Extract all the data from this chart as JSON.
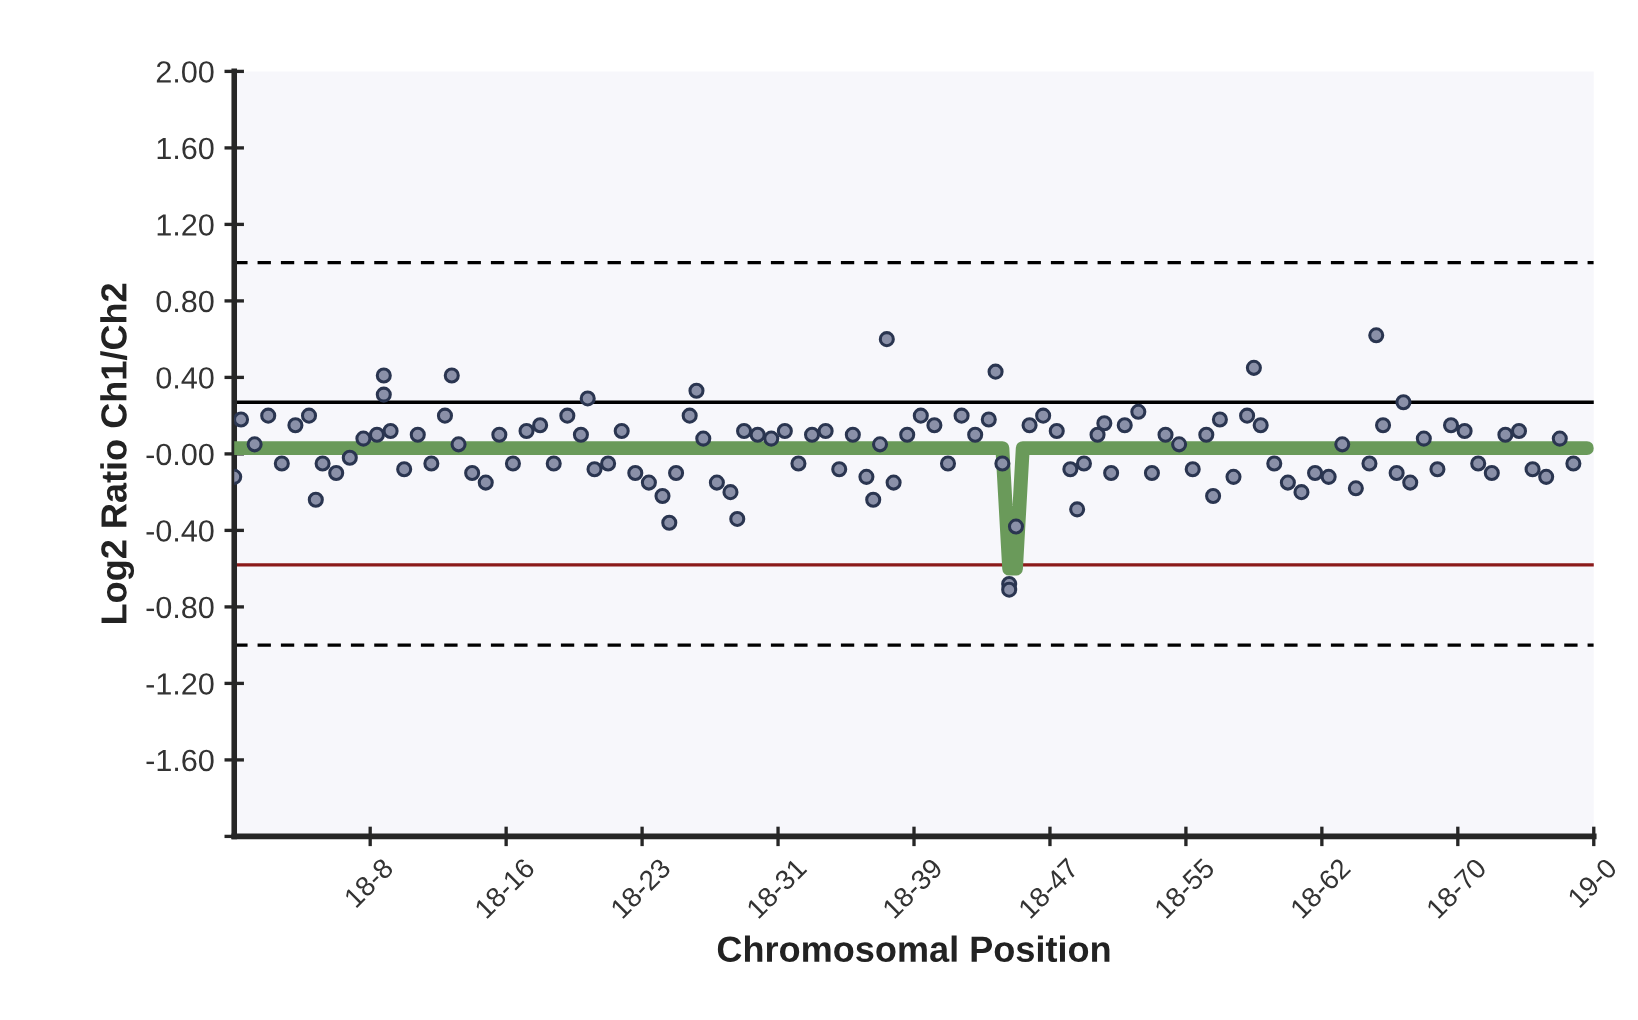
{
  "chart_data": {
    "type": "scatter",
    "xlabel": "Chromosomal Position",
    "ylabel": "Log2 Ratio Ch1/Ch2",
    "categories": [
      null,
      null,
      null,
      null,
      null,
      null,
      null,
      null,
      null,
      null,
      null,
      null,
      null,
      null,
      null,
      null,
      null,
      null,
      null,
      null,
      "18-8",
      null,
      null,
      null,
      null,
      null,
      null,
      null,
      null,
      null,
      null,
      null,
      null,
      null,
      null,
      null,
      null,
      null,
      null,
      null,
      "18-16",
      null,
      null,
      null,
      null,
      null,
      null,
      null,
      null,
      null,
      null,
      null,
      null,
      null,
      null,
      null,
      null,
      null,
      null,
      null,
      "18-23",
      null,
      null,
      null,
      null,
      null,
      null,
      null,
      null,
      null,
      null,
      null,
      null,
      null,
      null,
      null,
      null,
      null,
      null,
      null,
      "18-31",
      null,
      null,
      null,
      null,
      null,
      null,
      null,
      null,
      null,
      null,
      null,
      null,
      null,
      null,
      null,
      null,
      null,
      null,
      null,
      "18-39",
      null,
      null,
      null,
      null,
      null,
      null,
      null,
      null,
      null,
      null,
      null,
      null,
      null,
      null,
      null,
      null,
      null,
      null,
      null,
      "18-47",
      null,
      null,
      null,
      null,
      null,
      null,
      null,
      null,
      null,
      null,
      null,
      null,
      null,
      null,
      null,
      null,
      null,
      null,
      null,
      "18-55",
      null,
      null,
      null,
      null,
      null,
      null,
      null,
      null,
      null,
      null,
      null,
      null,
      null,
      null,
      null,
      null,
      null,
      null,
      null,
      "18-62",
      null,
      null,
      null,
      null,
      null,
      null,
      null,
      null,
      null,
      null,
      null,
      null,
      null,
      null,
      null,
      null,
      null,
      null,
      null,
      "18-70",
      null,
      null,
      null,
      null,
      null,
      null,
      null,
      null,
      null,
      null,
      null,
      null,
      null,
      null,
      null,
      null,
      null,
      null,
      null,
      "19-0"
    ],
    "ylim": [
      -2,
      2
    ],
    "yticks": [
      {
        "value": 2,
        "label": "2.00"
      },
      {
        "value": 1.6,
        "label": "1.60"
      },
      {
        "value": 1.2,
        "label": "1.20"
      },
      {
        "value": 0.8,
        "label": "0.80"
      },
      {
        "value": 0.4,
        "label": "0.40"
      },
      {
        "value": 0,
        "label": "-0.00"
      },
      {
        "value": -0.4,
        "label": "-0.40"
      },
      {
        "value": -0.8,
        "label": "-0.80"
      },
      {
        "value": -1.2,
        "label": "-1.20"
      },
      {
        "value": -1.6,
        "label": "-1.60"
      },
      {
        "value": -2,
        "label": null
      }
    ],
    "grid": false,
    "marker": "circle",
    "ref_lines": [
      {
        "axis": "y",
        "value": 1.0,
        "color": "#000000",
        "line_style": "dashed"
      },
      {
        "axis": "y",
        "value": -1.0,
        "color": "#000000",
        "line_style": "dashed"
      },
      {
        "axis": "y",
        "value": 0.27,
        "color": "#000000",
        "line_style": "solid"
      },
      {
        "axis": "y",
        "value": -0.58,
        "color": "#8b1a1a",
        "line_style": "solid"
      }
    ],
    "series": [
      {
        "color": "#2a3550",
        "values": [
          -0.12,
          0.18,
          null,
          0.05,
          null,
          0.2,
          null,
          -0.05,
          null,
          0.15,
          null,
          0.2,
          -0.24,
          -0.05,
          null,
          -0.1,
          null,
          -0.02,
          null,
          0.08,
          null,
          0.1,
          0.41,
          0.12,
          null,
          -0.08,
          null,
          0.1,
          null,
          -0.05,
          null,
          0.2,
          0.41,
          0.05,
          null,
          -0.1,
          null,
          -0.15,
          null,
          0.1,
          null,
          -0.05,
          null,
          0.12,
          null,
          0.15,
          null,
          -0.05,
          null,
          0.2,
          null,
          0.1,
          0.29,
          -0.08,
          null,
          -0.05,
          null,
          0.12,
          null,
          -0.1,
          null,
          -0.15,
          null,
          -0.22,
          -0.36,
          -0.1,
          null,
          0.2,
          0.33,
          0.08,
          null,
          -0.15,
          null,
          -0.2,
          -0.34,
          0.12,
          null,
          0.1,
          null,
          0.08,
          null,
          0.12,
          null,
          -0.05,
          null,
          0.1,
          null,
          0.12,
          null,
          -0.08,
          null,
          0.1,
          null,
          -0.12,
          -0.24,
          0.05,
          0.6,
          -0.15,
          null,
          0.1,
          null,
          0.2,
          null,
          0.15,
          null,
          -0.05,
          null,
          0.2,
          null,
          0.1,
          null,
          0.18,
          0.43,
          -0.05,
          -0.68,
          -0.38,
          null,
          0.15,
          null,
          0.2,
          null,
          0.12,
          null,
          -0.08,
          -0.29,
          -0.05,
          null,
          0.1,
          0.16,
          -0.1,
          null,
          0.15,
          null,
          0.22,
          null,
          -0.1,
          null,
          0.1,
          null,
          0.05,
          null,
          -0.08,
          null,
          0.1,
          -0.22,
          0.18,
          null,
          -0.12,
          null,
          0.2,
          0.45,
          0.15,
          null,
          -0.05,
          null,
          -0.15,
          null,
          -0.2,
          null,
          -0.1,
          null,
          -0.12,
          null,
          0.05,
          null,
          -0.18,
          null,
          -0.05,
          0.62,
          0.15,
          null,
          -0.1,
          0.27,
          -0.15,
          null,
          0.08,
          null,
          -0.08,
          null,
          0.15,
          null,
          0.12,
          null,
          -0.05,
          null,
          -0.1,
          null,
          0.1,
          null,
          0.12,
          null,
          -0.08,
          null,
          -0.12,
          null,
          0.08,
          null,
          -0.05,
          null,
          null,
          null
        ]
      },
      {
        "color": "#2a3550",
        "values": [
          null,
          null,
          null,
          null,
          null,
          null,
          null,
          null,
          null,
          null,
          null,
          null,
          null,
          null,
          null,
          null,
          null,
          null,
          null,
          null,
          null,
          null,
          0.31,
          null,
          null,
          null,
          null,
          null,
          null,
          null,
          null,
          null,
          null,
          null,
          null,
          null,
          null,
          null,
          null,
          null,
          null,
          null,
          null,
          null,
          null,
          null,
          null,
          null,
          null,
          null,
          null,
          null,
          null,
          null,
          null,
          null,
          null,
          null,
          null,
          null,
          null,
          null,
          null,
          null,
          null,
          null,
          null,
          null,
          null,
          null,
          null,
          null,
          null,
          null,
          null,
          null,
          null,
          null,
          null,
          null,
          null,
          null,
          null,
          null,
          null,
          null,
          null,
          null,
          null,
          null,
          null,
          null,
          null,
          null,
          null,
          null,
          null,
          null,
          null,
          null,
          null,
          null,
          null,
          null,
          null,
          null,
          null,
          null,
          null,
          null,
          null,
          null,
          null,
          null,
          -0.71,
          null,
          null,
          null,
          null,
          null,
          null,
          null,
          null,
          null,
          null,
          null,
          null,
          null,
          null,
          null,
          null,
          null,
          null,
          null,
          null,
          null,
          null,
          null,
          null,
          null,
          null,
          null,
          null,
          null,
          null,
          null,
          null,
          null,
          null,
          null,
          null,
          null,
          null,
          null,
          null,
          null,
          null,
          null,
          null,
          null,
          null,
          null,
          null,
          null,
          null,
          null,
          null,
          null,
          null,
          null,
          null,
          null,
          null,
          null,
          null,
          null,
          null,
          null,
          null,
          null,
          null,
          null,
          null,
          null,
          null,
          null,
          null,
          null,
          null,
          null,
          null,
          null,
          null,
          null,
          null,
          null,
          null,
          null,
          null,
          null,
          null
        ]
      },
      {
        "type": "line",
        "marker": "none",
        "color": "#6a9a5a",
        "values": [
          0.03,
          0.03,
          0.03,
          0.03,
          0.03,
          0.03,
          0.03,
          0.03,
          0.03,
          0.03,
          0.03,
          0.03,
          0.03,
          0.03,
          0.03,
          0.03,
          0.03,
          0.03,
          0.03,
          0.03,
          0.03,
          0.03,
          0.03,
          0.03,
          0.03,
          0.03,
          0.03,
          0.03,
          0.03,
          0.03,
          0.03,
          0.03,
          0.03,
          0.03,
          0.03,
          0.03,
          0.03,
          0.03,
          0.03,
          0.03,
          0.03,
          0.03,
          0.03,
          0.03,
          0.03,
          0.03,
          0.03,
          0.03,
          0.03,
          0.03,
          0.03,
          0.03,
          0.03,
          0.03,
          0.03,
          0.03,
          0.03,
          0.03,
          0.03,
          0.03,
          0.03,
          0.03,
          0.03,
          0.03,
          0.03,
          0.03,
          0.03,
          0.03,
          0.03,
          0.03,
          0.03,
          0.03,
          0.03,
          0.03,
          0.03,
          0.03,
          0.03,
          0.03,
          0.03,
          0.03,
          0.03,
          0.03,
          0.03,
          0.03,
          0.03,
          0.03,
          0.03,
          0.03,
          0.03,
          0.03,
          0.03,
          0.03,
          0.03,
          0.03,
          0.03,
          0.03,
          0.03,
          0.03,
          0.03,
          0.03,
          0.03,
          0.03,
          0.03,
          0.03,
          0.03,
          0.03,
          0.03,
          0.03,
          0.03,
          0.03,
          0.03,
          0.03,
          0.03,
          0.03,
          -0.6,
          -0.6,
          0.03,
          0.03,
          0.03,
          0.03,
          0.03,
          0.03,
          0.03,
          0.03,
          0.03,
          0.03,
          0.03,
          0.03,
          0.03,
          0.03,
          0.03,
          0.03,
          0.03,
          0.03,
          0.03,
          0.03,
          0.03,
          0.03,
          0.03,
          0.03,
          0.03,
          0.03,
          0.03,
          0.03,
          0.03,
          0.03,
          0.03,
          0.03,
          0.03,
          0.03,
          0.03,
          0.03,
          0.03,
          0.03,
          0.03,
          0.03,
          0.03,
          0.03,
          0.03,
          0.03,
          0.03,
          0.03,
          0.03,
          0.03,
          0.03,
          0.03,
          0.03,
          0.03,
          0.03,
          0.03,
          0.03,
          0.03,
          0.03,
          0.03,
          0.03,
          0.03,
          0.03,
          0.03,
          0.03,
          0.03,
          0.03,
          0.03,
          0.03,
          0.03,
          0.03,
          0.03,
          0.03,
          0.03,
          0.03,
          0.03,
          0.03,
          0.03,
          0.03,
          0.03,
          0.03,
          0.03,
          0.03,
          0.03,
          0.03,
          0.03,
          null
        ]
      }
    ]
  }
}
